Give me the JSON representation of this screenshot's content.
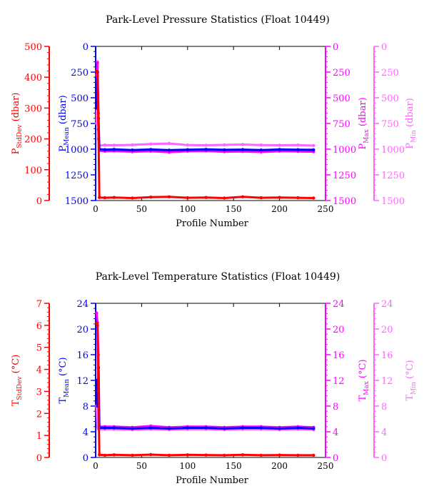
{
  "colors": {
    "stddev": "#ff0000",
    "mean": "#0000ff",
    "max": "#ff00ff",
    "min": "#ff66ff",
    "frame": "#000000"
  },
  "chart_data": [
    {
      "type": "scatter",
      "title": "Park-Level Pressure Statistics (Float 10449)",
      "xlabel": "Profile Number",
      "xlim": [
        0,
        250
      ],
      "xticks": [
        0,
        50,
        100,
        150,
        200,
        250
      ],
      "axes": {
        "stddev": {
          "label_main": "P",
          "label_sub": "StdDev",
          "label_tail": " (dbar)",
          "lim": [
            0,
            500
          ],
          "ticks": [
            0,
            100,
            200,
            300,
            400,
            500
          ],
          "inverted": false
        },
        "mean": {
          "label_main": "P",
          "label_sub": "Mean",
          "label_tail": " (dbar)",
          "lim": [
            0,
            1500
          ],
          "ticks": [
            0,
            250,
            500,
            750,
            1000,
            1250,
            1500
          ],
          "inverted": true
        },
        "max": {
          "label_main": "P",
          "label_sub": "Max",
          "label_tail": " (dbar)",
          "lim": [
            0,
            1500
          ],
          "ticks": [
            0,
            250,
            500,
            750,
            1000,
            1250,
            1500
          ],
          "inverted": true
        },
        "min": {
          "label_main": "P",
          "label_sub": "Min",
          "label_tail": " (dbar)",
          "lim": [
            0,
            1500
          ],
          "ticks": [
            0,
            250,
            500,
            750,
            1000,
            1250,
            1500
          ],
          "inverted": true
        }
      },
      "series": [
        {
          "axis": "stddev",
          "x": [
            1,
            2,
            3,
            4,
            10,
            20,
            40,
            60,
            80,
            100,
            120,
            140,
            160,
            180,
            200,
            220,
            237
          ],
          "y": [
            420,
            405,
            230,
            10,
            9,
            10,
            8,
            11,
            12,
            9,
            10,
            8,
            12,
            9,
            10,
            9,
            8
          ]
        },
        {
          "axis": "mean",
          "x": [
            1,
            2,
            3,
            4,
            10,
            20,
            40,
            60,
            80,
            100,
            120,
            140,
            160,
            180,
            200,
            220,
            237
          ],
          "y": [
            600,
            250,
            700,
            1000,
            1005,
            1002,
            1008,
            1003,
            1010,
            1005,
            1002,
            1006,
            1004,
            1008,
            1003,
            1005,
            1006
          ]
        },
        {
          "axis": "max",
          "x": [
            1,
            2,
            3,
            4,
            10,
            20,
            40,
            60,
            80,
            100,
            120,
            140,
            160,
            180,
            200,
            220,
            237
          ],
          "y": [
            280,
            160,
            650,
            1015,
            1020,
            1018,
            1025,
            1020,
            1030,
            1020,
            1018,
            1025,
            1022,
            1028,
            1020,
            1022,
            1025
          ]
        },
        {
          "axis": "min",
          "x": [
            1,
            2,
            3,
            4,
            10,
            20,
            40,
            60,
            80,
            100,
            120,
            140,
            160,
            180,
            200,
            220,
            237
          ],
          "y": [
            750,
            150,
            900,
            965,
            960,
            962,
            958,
            950,
            945,
            960,
            962,
            958,
            955,
            960,
            962,
            960,
            965
          ]
        }
      ]
    },
    {
      "type": "scatter",
      "title": "Park-Level Temperature Statistics (Float 10449)",
      "xlabel": "Profile Number",
      "xlim": [
        0,
        250
      ],
      "xticks": [
        0,
        50,
        100,
        150,
        200,
        250
      ],
      "axes": {
        "stddev": {
          "label_main": "T",
          "label_sub": "StdDev",
          "label_tail": " (°C)",
          "lim": [
            0,
            7
          ],
          "ticks": [
            0,
            1,
            2,
            3,
            4,
            5,
            6,
            7
          ],
          "inverted": false
        },
        "mean": {
          "label_main": "T",
          "label_sub": "Mean",
          "label_tail": " (°C)",
          "lim": [
            0,
            24
          ],
          "ticks": [
            0,
            4,
            8,
            12,
            16,
            20,
            24
          ],
          "inverted": false
        },
        "max": {
          "label_main": "T",
          "label_sub": "Max",
          "label_tail": " (°C)",
          "lim": [
            0,
            24
          ],
          "ticks": [
            0,
            4,
            8,
            12,
            16,
            20,
            24
          ],
          "inverted": false
        },
        "min": {
          "label_main": "T",
          "label_sub": "Min",
          "label_tail": " (°C)",
          "lim": [
            0,
            24
          ],
          "ticks": [
            0,
            4,
            8,
            12,
            16,
            20,
            24
          ],
          "inverted": false
        }
      },
      "series": [
        {
          "axis": "stddev",
          "x": [
            1,
            2,
            3,
            4,
            10,
            20,
            40,
            60,
            80,
            100,
            120,
            140,
            160,
            180,
            200,
            220,
            237
          ],
          "y": [
            6.1,
            6.0,
            3.0,
            0.12,
            0.1,
            0.12,
            0.1,
            0.13,
            0.1,
            0.12,
            0.11,
            0.1,
            0.12,
            0.1,
            0.11,
            0.1,
            0.1
          ]
        },
        {
          "axis": "mean",
          "x": [
            1,
            2,
            3,
            4,
            10,
            20,
            40,
            60,
            80,
            100,
            120,
            140,
            160,
            180,
            200,
            220,
            237
          ],
          "y": [
            12.0,
            8.0,
            14.0,
            4.6,
            4.6,
            4.6,
            4.5,
            4.6,
            4.5,
            4.6,
            4.6,
            4.5,
            4.6,
            4.6,
            4.5,
            4.6,
            4.5
          ]
        },
        {
          "axis": "max",
          "x": [
            1,
            2,
            3,
            4,
            10,
            20,
            40,
            60,
            80,
            100,
            120,
            140,
            160,
            180,
            200,
            220,
            237
          ],
          "y": [
            22.5,
            21.0,
            16.0,
            4.8,
            4.8,
            4.8,
            4.7,
            4.9,
            4.7,
            4.8,
            4.8,
            4.7,
            4.8,
            4.8,
            4.7,
            4.8,
            4.7
          ]
        },
        {
          "axis": "min",
          "x": [
            1,
            2,
            3,
            4,
            10,
            20,
            40,
            60,
            80,
            100,
            120,
            140,
            160,
            180,
            200,
            220,
            237
          ],
          "y": [
            8.0,
            4.5,
            7.0,
            4.4,
            4.4,
            4.4,
            4.3,
            4.4,
            4.3,
            4.4,
            4.4,
            4.3,
            4.4,
            4.4,
            4.3,
            4.4,
            4.3
          ]
        }
      ]
    }
  ]
}
